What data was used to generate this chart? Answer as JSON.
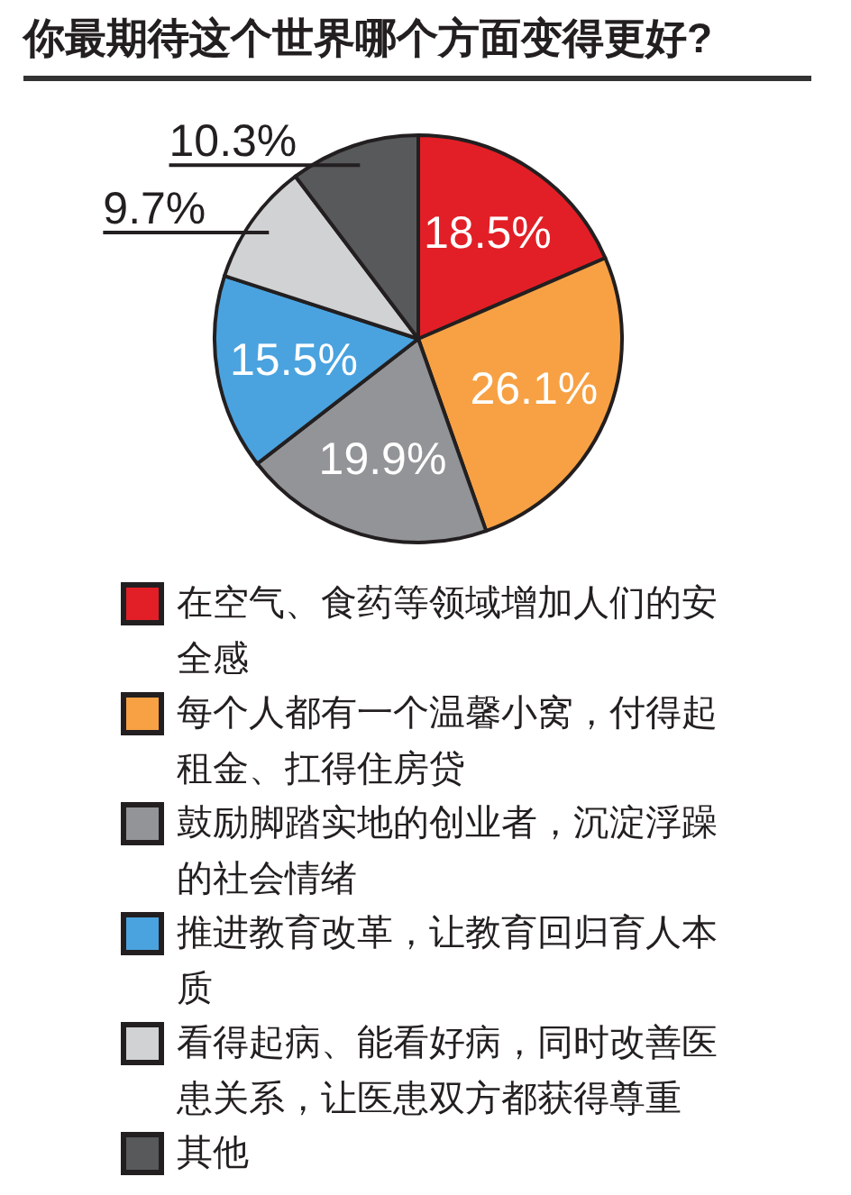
{
  "chart_data": {
    "type": "pie",
    "title": "你最期待这个世界哪个方面变得更好?",
    "categories": [
      "在空气、食药等领域增加人们的安全感",
      "每个人都有一个温馨小窝，付得起租金、扛得住房贷",
      "鼓励脚踏实地的创业者，沉淀浮躁的社会情绪",
      "推进教育改革，让教育回归育人本质",
      "看得起病、能看好病，同时改善医患关系，让医患双方都获得尊重",
      "其他"
    ],
    "values": [
      18.5,
      26.1,
      19.9,
      15.5,
      9.7,
      10.3
    ],
    "colors": [
      "#e21f26",
      "#f7a144",
      "#929497",
      "#4aa3df",
      "#d0d2d3",
      "#58595b"
    ],
    "value_labels": [
      "18.5%",
      "26.1%",
      "19.9%",
      "15.5%",
      "9.7%",
      "10.3%"
    ],
    "legend": "bottom"
  }
}
